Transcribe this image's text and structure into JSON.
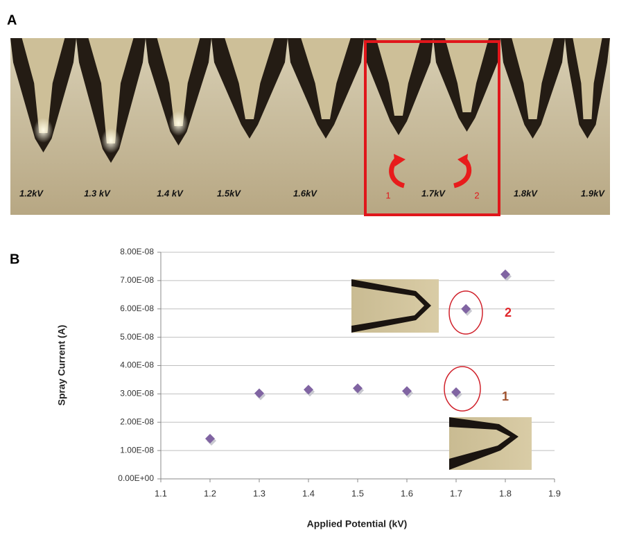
{
  "panel_a": {
    "label": "A",
    "voltages": [
      "1.2kV",
      "1.3 kV",
      "1.4 kV",
      "1.5kV",
      "1.6kV",
      "1.7kV",
      "1.8kV",
      "1.9kV"
    ],
    "markers": [
      "1",
      "2"
    ]
  },
  "panel_b": {
    "label": "B"
  },
  "chart_data": {
    "type": "scatter",
    "x_label": "Applied Potential (kV)",
    "y_label": "Spray Current (A)",
    "x": [
      1.2,
      1.3,
      1.4,
      1.5,
      1.6,
      1.7,
      1.72,
      1.8
    ],
    "series": [
      {
        "color": "#8064a2",
        "values": [
          1.42e-08,
          3.02e-08,
          3.15e-08,
          3.2e-08,
          3.1e-08,
          3.06e-08,
          6e-08,
          7.22e-08
        ]
      }
    ],
    "xlim": [
      1.1,
      1.9
    ],
    "xticks": [
      1.1,
      1.2,
      1.3,
      1.4,
      1.5,
      1.6,
      1.7,
      1.8,
      1.9
    ],
    "ylim": [
      0,
      8e-08
    ],
    "yticks": [
      {
        "value": 0,
        "label": "0.00E+00"
      },
      {
        "value": 1e-08,
        "label": "1.00E-08"
      },
      {
        "value": 2e-08,
        "label": "2.00E-08"
      },
      {
        "value": 3e-08,
        "label": "3.00E-08"
      },
      {
        "value": 4e-08,
        "label": "4.00E-08"
      },
      {
        "value": 5e-08,
        "label": "5.00E-08"
      },
      {
        "value": 6e-08,
        "label": "6.00E-08"
      },
      {
        "value": 7e-08,
        "label": "7.00E-08"
      },
      {
        "value": 8e-08,
        "label": "8.00E-08"
      }
    ],
    "grid": true,
    "annotations": [
      "2",
      "1"
    ]
  }
}
